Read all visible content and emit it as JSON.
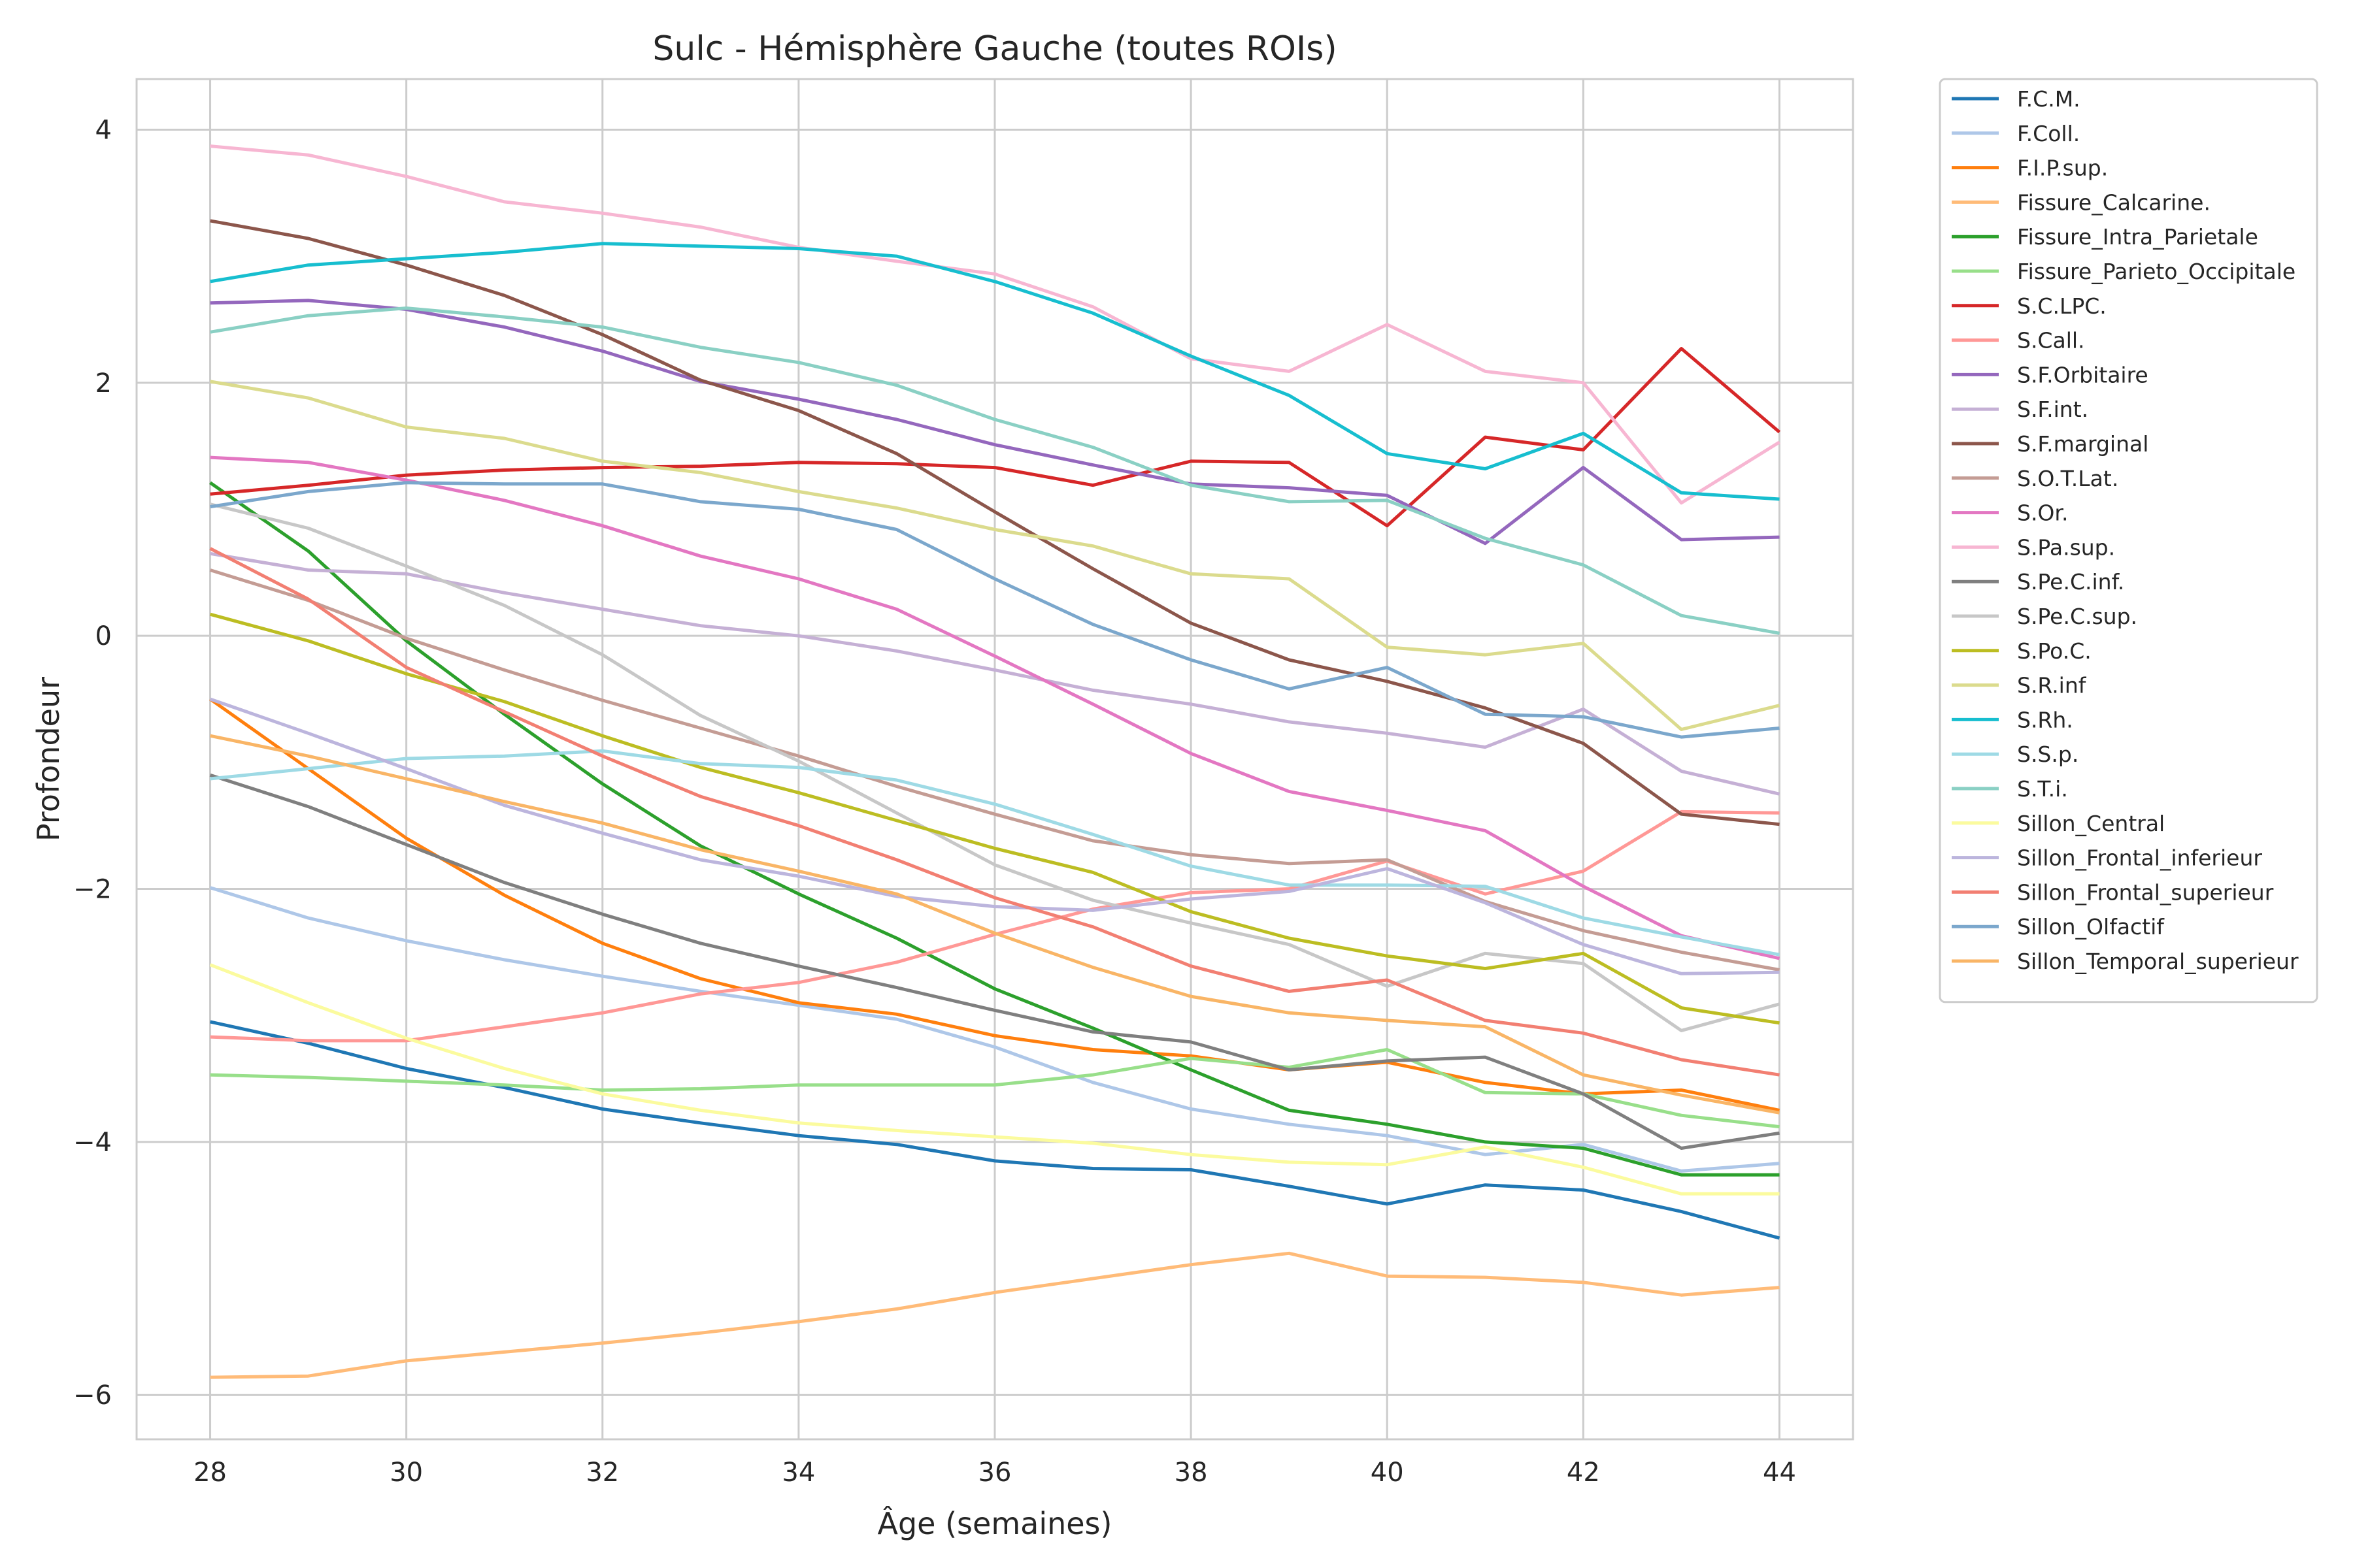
{
  "chart_data": {
    "type": "line",
    "title": "Sulc - Hémisphère Gauche (toutes ROIs)",
    "xlabel": "Âge (semaines)",
    "ylabel": "Profondeur",
    "xlim": [
      27.25,
      44.75
    ],
    "ylim": [
      -6.35,
      4.4
    ],
    "xticks": [
      28,
      30,
      32,
      34,
      36,
      38,
      40,
      42,
      44
    ],
    "yticks": [
      -6,
      -4,
      -2,
      0,
      2,
      4
    ],
    "xtick_labels": [
      "28",
      "30",
      "32",
      "34",
      "36",
      "38",
      "40",
      "42",
      "44"
    ],
    "ytick_labels": [
      "−6",
      "−4",
      "−2",
      "0",
      "2",
      "4"
    ],
    "grid": true,
    "legend_position": "outside-right",
    "x": [
      28,
      29,
      30,
      31,
      32,
      33,
      34,
      35,
      36,
      37,
      38,
      39,
      40,
      41,
      42,
      43,
      44
    ],
    "series": [
      {
        "name": "F.C.M.",
        "color": "#1f77b4",
        "values": [
          -3.05,
          -3.22,
          -3.42,
          -3.57,
          -3.74,
          -3.85,
          -3.95,
          -4.02,
          -4.15,
          -4.21,
          -4.22,
          -4.35,
          -4.49,
          -4.34,
          -4.38,
          -4.55,
          -4.76
        ]
      },
      {
        "name": "F.Coll.",
        "color": "#aec7e8",
        "values": [
          -1.99,
          -2.23,
          -2.41,
          -2.56,
          -2.69,
          -2.81,
          -2.92,
          -3.03,
          -3.25,
          -3.53,
          -3.74,
          -3.86,
          -3.95,
          -4.1,
          -4.02,
          -4.23,
          -4.17
        ]
      },
      {
        "name": "F.I.P.sup.",
        "color": "#ff7f0e",
        "values": [
          -0.5,
          -1.05,
          -1.6,
          -2.05,
          -2.43,
          -2.71,
          -2.9,
          -2.99,
          -3.16,
          -3.27,
          -3.32,
          -3.43,
          -3.37,
          -3.53,
          -3.62,
          -3.59,
          -3.75
        ]
      },
      {
        "name": "Fissure_Calcarine.",
        "color": "#ffbb78",
        "values": [
          -5.86,
          -5.85,
          -5.73,
          -5.66,
          -5.59,
          -5.51,
          -5.42,
          -5.32,
          -5.19,
          -5.08,
          -4.97,
          -4.88,
          -5.06,
          -5.07,
          -5.11,
          -5.21,
          -5.15
        ]
      },
      {
        "name": "Fissure_Intra_Parietale",
        "color": "#2ca02c",
        "values": [
          1.21,
          0.67,
          -0.04,
          -0.62,
          -1.17,
          -1.66,
          -2.04,
          -2.39,
          -2.79,
          -3.1,
          -3.43,
          -3.75,
          -3.86,
          -4.0,
          -4.05,
          -4.26,
          -4.26
        ]
      },
      {
        "name": "Fissure_Parieto_Occipitale",
        "color": "#98df8a",
        "values": [
          -3.47,
          -3.49,
          -3.52,
          -3.55,
          -3.59,
          -3.58,
          -3.55,
          -3.55,
          -3.55,
          -3.47,
          -3.34,
          -3.41,
          -3.27,
          -3.61,
          -3.62,
          -3.79,
          -3.88
        ]
      },
      {
        "name": "S.C.LPC.",
        "color": "#d62728",
        "values": [
          1.12,
          1.19,
          1.27,
          1.31,
          1.33,
          1.34,
          1.37,
          1.36,
          1.33,
          1.19,
          1.38,
          1.37,
          0.87,
          1.57,
          1.47,
          2.27,
          1.61
        ]
      },
      {
        "name": "S.Call.",
        "color": "#ff9896",
        "values": [
          -3.17,
          -3.2,
          -3.2,
          -3.09,
          -2.98,
          -2.83,
          -2.74,
          -2.58,
          -2.36,
          -2.16,
          -2.03,
          -2.0,
          -1.78,
          -2.04,
          -1.86,
          -1.39,
          -1.4
        ]
      },
      {
        "name": "S.F.Orbitaire",
        "color": "#9467bd",
        "values": [
          2.63,
          2.65,
          2.58,
          2.44,
          2.25,
          2.01,
          1.87,
          1.71,
          1.51,
          1.35,
          1.2,
          1.17,
          1.11,
          0.73,
          1.33,
          0.76,
          0.78
        ]
      },
      {
        "name": "S.F.int.",
        "color": "#c5b0d5",
        "values": [
          0.65,
          0.52,
          0.49,
          0.34,
          0.21,
          0.08,
          0.0,
          -0.12,
          -0.27,
          -0.43,
          -0.54,
          -0.68,
          -0.77,
          -0.88,
          -0.58,
          -1.07,
          -1.25
        ]
      },
      {
        "name": "S.F.marginal",
        "color": "#8c564b",
        "values": [
          3.28,
          3.14,
          2.93,
          2.69,
          2.38,
          2.02,
          1.78,
          1.44,
          0.98,
          0.53,
          0.1,
          -0.19,
          -0.36,
          -0.57,
          -0.85,
          -1.41,
          -1.49
        ]
      },
      {
        "name": "S.O.T.Lat.",
        "color": "#c49c94",
        "values": [
          0.52,
          0.28,
          -0.02,
          -0.27,
          -0.51,
          -0.73,
          -0.95,
          -1.19,
          -1.41,
          -1.62,
          -1.73,
          -1.8,
          -1.77,
          -2.1,
          -2.33,
          -2.5,
          -2.64
        ]
      },
      {
        "name": "S.Or.",
        "color": "#e377c2",
        "values": [
          1.41,
          1.37,
          1.23,
          1.07,
          0.87,
          0.63,
          0.45,
          0.21,
          -0.16,
          -0.54,
          -0.93,
          -1.23,
          -1.38,
          -1.54,
          -1.98,
          -2.37,
          -2.55
        ]
      },
      {
        "name": "S.Pa.sup.",
        "color": "#f7b6d2",
        "values": [
          3.87,
          3.8,
          3.63,
          3.43,
          3.34,
          3.23,
          3.07,
          2.96,
          2.86,
          2.6,
          2.19,
          2.09,
          2.46,
          2.09,
          2.0,
          1.05,
          1.53
        ]
      },
      {
        "name": "S.Pe.C.inf.",
        "color": "#7f7f7f",
        "values": [
          -1.1,
          -1.35,
          -1.65,
          -1.95,
          -2.2,
          -2.43,
          -2.61,
          -2.78,
          -2.96,
          -3.13,
          -3.21,
          -3.43,
          -3.36,
          -3.33,
          -3.62,
          -4.05,
          -3.93
        ]
      },
      {
        "name": "S.Pe.C.sup.",
        "color": "#c7c7c7",
        "values": [
          1.04,
          0.85,
          0.55,
          0.24,
          -0.15,
          -0.63,
          -0.99,
          -1.4,
          -1.81,
          -2.09,
          -2.27,
          -2.44,
          -2.77,
          -2.51,
          -2.59,
          -3.12,
          -2.91
        ]
      },
      {
        "name": "S.Po.C.",
        "color": "#bcbd22",
        "values": [
          0.17,
          -0.04,
          -0.3,
          -0.52,
          -0.79,
          -1.04,
          -1.24,
          -1.46,
          -1.68,
          -1.87,
          -2.18,
          -2.39,
          -2.53,
          -2.63,
          -2.51,
          -2.94,
          -3.06
        ]
      },
      {
        "name": "S.R.inf",
        "color": "#dbdb8d",
        "values": [
          2.01,
          1.88,
          1.65,
          1.56,
          1.38,
          1.29,
          1.14,
          1.01,
          0.84,
          0.71,
          0.49,
          0.45,
          -0.09,
          -0.15,
          -0.06,
          -0.74,
          -0.55
        ]
      },
      {
        "name": "S.Rh.",
        "color": "#17becf",
        "values": [
          2.8,
          2.93,
          2.98,
          3.03,
          3.1,
          3.08,
          3.06,
          3.0,
          2.8,
          2.55,
          2.21,
          1.9,
          1.44,
          1.32,
          1.6,
          1.13,
          1.08
        ]
      },
      {
        "name": "S.S.p.",
        "color": "#9edae5",
        "values": [
          -1.13,
          -1.05,
          -0.97,
          -0.95,
          -0.91,
          -1.01,
          -1.04,
          -1.14,
          -1.33,
          -1.57,
          -1.82,
          -1.97,
          -1.97,
          -1.98,
          -2.23,
          -2.38,
          -2.52
        ]
      },
      {
        "name": "S.T.i.",
        "color": "#8ad0c4",
        "values": [
          2.4,
          2.53,
          2.59,
          2.52,
          2.44,
          2.28,
          2.16,
          1.98,
          1.71,
          1.49,
          1.19,
          1.06,
          1.07,
          0.77,
          0.56,
          0.16,
          0.02
        ]
      },
      {
        "name": "Sillon_Central",
        "color": "#fbfb9e",
        "values": [
          -2.6,
          -2.9,
          -3.18,
          -3.42,
          -3.62,
          -3.75,
          -3.85,
          -3.91,
          -3.96,
          -4.01,
          -4.1,
          -4.16,
          -4.18,
          -4.04,
          -4.2,
          -4.41,
          -4.41
        ]
      },
      {
        "name": "Sillon_Frontal_inferieur",
        "color": "#bcb5dd",
        "values": [
          -0.5,
          -0.77,
          -1.05,
          -1.34,
          -1.56,
          -1.77,
          -1.9,
          -2.06,
          -2.14,
          -2.17,
          -2.08,
          -2.02,
          -1.84,
          -2.11,
          -2.44,
          -2.67,
          -2.66
        ]
      },
      {
        "name": "Sillon_Frontal_superieur",
        "color": "#f27f72",
        "values": [
          0.69,
          0.29,
          -0.25,
          -0.6,
          -0.95,
          -1.27,
          -1.5,
          -1.77,
          -2.07,
          -2.3,
          -2.61,
          -2.81,
          -2.72,
          -3.04,
          -3.14,
          -3.35,
          -3.47
        ]
      },
      {
        "name": "Sillon_Olfactif",
        "color": "#7ba7cc",
        "values": [
          1.02,
          1.14,
          1.21,
          1.2,
          1.2,
          1.06,
          1.0,
          0.84,
          0.45,
          0.09,
          -0.19,
          -0.42,
          -0.25,
          -0.62,
          -0.64,
          -0.8,
          -0.73
        ]
      },
      {
        "name": "Sillon_Temporal_superieur",
        "color": "#f9b566",
        "values": [
          -0.79,
          -0.95,
          -1.13,
          -1.31,
          -1.48,
          -1.69,
          -1.86,
          -2.04,
          -2.35,
          -2.62,
          -2.85,
          -2.98,
          -3.04,
          -3.09,
          -3.47,
          -3.63,
          -3.77
        ]
      }
    ]
  }
}
